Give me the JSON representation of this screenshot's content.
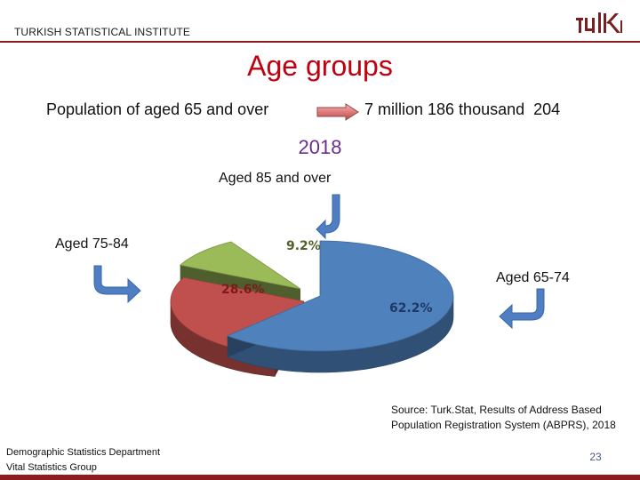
{
  "header": {
    "org_name": "TURKISH STATISTICAL INSTITUTE",
    "logo_text": "TÜİK"
  },
  "title": "Age groups",
  "population": {
    "label": "Population of aged 65 and over",
    "value": "7 million 186 thousand  204"
  },
  "year": "2018",
  "source": {
    "line1": "Source: Turk.Stat, Results of Address Based",
    "line2": "Population Registration System (ABPRS), 2018"
  },
  "footer": {
    "department": "Demographic Statistics Department",
    "group": "Vital Statistics Group",
    "page_number": "23"
  },
  "colors": {
    "title": "#c0000f",
    "year": "#6a2e8e",
    "arrow": "#4f7ec2",
    "accent": "#8c1c20"
  },
  "icons": {
    "pop_arrow": "right-arrow-icon",
    "callout_arrows": "bent-arrow-icon"
  },
  "chart_data": {
    "type": "pie",
    "style": "3d-exploded",
    "categories": [
      "Aged 65-74",
      "Aged 75-84",
      "Aged 85 and over"
    ],
    "values": [
      62.2,
      28.6,
      9.2
    ],
    "value_labels": [
      "62.2%",
      "28.6%",
      "9.2%"
    ],
    "colors": [
      "#4f81bd",
      "#c0504d",
      "#9bbb59"
    ],
    "category_labels": {
      "aged_65_74": "Aged 65-74",
      "aged_75_84": "Aged 75-84",
      "aged_85_over": "Aged 85 and over"
    }
  }
}
